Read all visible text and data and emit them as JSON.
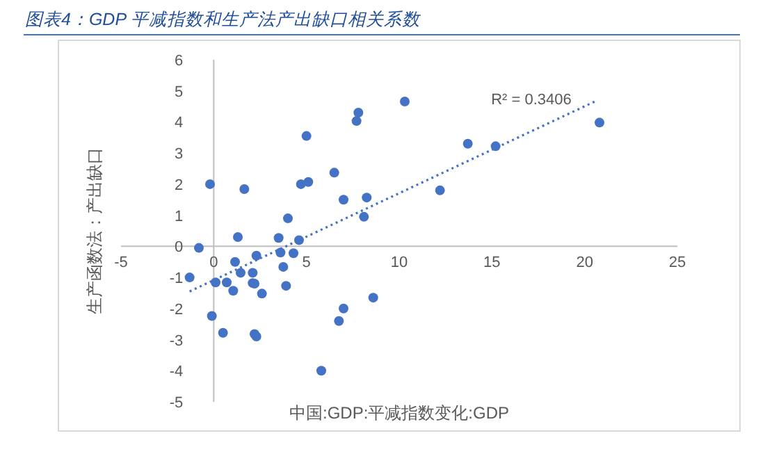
{
  "chart_data": {
    "type": "scatter",
    "title": "图表4：GDP 平减指数和生产法产出缺口相关系数",
    "xlabel": "中国:GDP:平减指数变化:GDP",
    "ylabel": "生产函数法：产出缺口",
    "xlim": [
      -5,
      25
    ],
    "xticks": [
      -5,
      0,
      5,
      10,
      15,
      20,
      25
    ],
    "ylim": [
      -5,
      6
    ],
    "yticks": [
      -5,
      -4,
      -3,
      -2,
      -1,
      0,
      1,
      2,
      3,
      4,
      5,
      6
    ],
    "grid": false,
    "marker": "circle",
    "series": [
      {
        "color": "#4472c4",
        "x": [
          -1.3,
          -0.8,
          -0.2,
          1.65,
          1.3,
          3.5,
          4.0,
          4.6,
          5.0,
          4.7,
          5.1,
          6.5,
          7.0,
          7.8,
          7.7,
          8.1,
          8.25,
          10.3,
          12.2,
          13.7,
          15.2,
          20.8,
          0.1,
          0.7,
          -0.1,
          0.5,
          1.05,
          1.15,
          1.45,
          2.1,
          2.1,
          2.2,
          2.3,
          2.2,
          2.3,
          2.6,
          3.6,
          3.75,
          3.9,
          4.3,
          5.8,
          6.75,
          7.0,
          8.6
        ],
        "values": [
          -1.0,
          -0.05,
          2.0,
          1.84,
          0.3,
          0.27,
          0.9,
          0.2,
          3.55,
          2.0,
          2.07,
          2.37,
          1.5,
          4.3,
          4.03,
          0.95,
          1.57,
          4.66,
          1.8,
          3.3,
          3.22,
          3.98,
          -1.16,
          -1.16,
          -2.24,
          -2.78,
          -1.43,
          -0.5,
          -0.85,
          -0.85,
          -1.18,
          -1.2,
          -0.3,
          -2.82,
          -2.9,
          -1.52,
          -0.2,
          -0.66,
          -1.27,
          -0.22,
          -4.0,
          -2.4,
          -2.0,
          -1.65
        ]
      },
      {
        "type": "line",
        "color": "#4472c4",
        "line_style": "dotted",
        "marker": "none",
        "x": [
          -1.3,
          20.7
        ],
        "values": [
          -1.45,
          4.7
        ]
      }
    ],
    "annotations": [
      "R² = 0.3406"
    ]
  }
}
